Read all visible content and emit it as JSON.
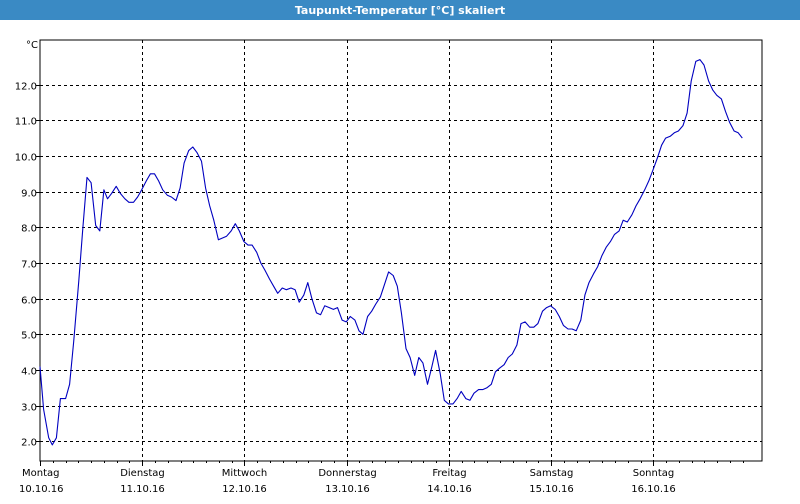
{
  "window": {
    "title": "Taupunkt-Temperatur [°C] skaliert"
  },
  "chart_data": {
    "type": "line",
    "title": "Taupunkt-Temperatur [°C] skaliert",
    "ylabel": "°C",
    "ylim": [
      1.45,
      13.25
    ],
    "xlim": [
      0,
      7.0625
    ],
    "grid": true,
    "yticks": [
      2.0,
      3.0,
      4.0,
      5.0,
      6.0,
      7.0,
      8.0,
      9.0,
      10.0,
      11.0,
      12.0
    ],
    "ytick_labels": [
      "2.0",
      "3.0",
      "4.0",
      "5.0",
      "6.0",
      "7.0",
      "8.0",
      "9.0",
      "10.0",
      "11.0",
      "12.0"
    ],
    "days": [
      {
        "name": "Montag",
        "date": "10.10.16",
        "x": 0
      },
      {
        "name": "Dienstag",
        "date": "11.10.16",
        "x": 1
      },
      {
        "name": "Mittwoch",
        "date": "12.10.16",
        "x": 2
      },
      {
        "name": "Donnerstag",
        "date": "13.10.16",
        "x": 3
      },
      {
        "name": "Freitag",
        "date": "14.10.16",
        "x": 4
      },
      {
        "name": "Samstag",
        "date": "15.10.16",
        "x": 5
      },
      {
        "name": "Sonntag",
        "date": "16.10.16",
        "x": 6
      }
    ],
    "series": [
      {
        "color": "#0000c0",
        "points": [
          [
            0.0,
            4.1
          ],
          [
            0.035,
            2.9
          ],
          [
            0.085,
            2.1
          ],
          [
            0.12,
            1.9
          ],
          [
            0.16,
            2.1
          ],
          [
            0.2,
            3.2
          ],
          [
            0.25,
            3.2
          ],
          [
            0.29,
            3.6
          ],
          [
            0.33,
            4.8
          ],
          [
            0.38,
            6.5
          ],
          [
            0.42,
            8.0
          ],
          [
            0.46,
            9.4
          ],
          [
            0.5,
            9.25
          ],
          [
            0.545,
            8.05
          ],
          [
            0.585,
            7.9
          ],
          [
            0.625,
            9.05
          ],
          [
            0.66,
            8.8
          ],
          [
            0.7,
            8.95
          ],
          [
            0.745,
            9.15
          ],
          [
            0.785,
            8.95
          ],
          [
            0.83,
            8.8
          ],
          [
            0.87,
            8.7
          ],
          [
            0.915,
            8.7
          ],
          [
            0.955,
            8.85
          ],
          [
            0.995,
            9.05
          ],
          [
            1.04,
            9.3
          ],
          [
            1.08,
            9.5
          ],
          [
            1.12,
            9.5
          ],
          [
            1.16,
            9.3
          ],
          [
            1.2,
            9.05
          ],
          [
            1.245,
            8.9
          ],
          [
            1.285,
            8.85
          ],
          [
            1.33,
            8.75
          ],
          [
            1.37,
            9.1
          ],
          [
            1.41,
            9.8
          ],
          [
            1.455,
            10.15
          ],
          [
            1.495,
            10.25
          ],
          [
            1.535,
            10.1
          ],
          [
            1.58,
            9.85
          ],
          [
            1.62,
            9.1
          ],
          [
            1.66,
            8.6
          ],
          [
            1.7,
            8.2
          ],
          [
            1.745,
            7.65
          ],
          [
            1.785,
            7.7
          ],
          [
            1.825,
            7.75
          ],
          [
            1.87,
            7.9
          ],
          [
            1.91,
            8.1
          ],
          [
            1.95,
            7.9
          ],
          [
            1.995,
            7.6
          ],
          [
            2.035,
            7.5
          ],
          [
            2.075,
            7.5
          ],
          [
            2.12,
            7.3
          ],
          [
            2.16,
            7.0
          ],
          [
            2.2,
            6.8
          ],
          [
            2.245,
            6.55
          ],
          [
            2.285,
            6.35
          ],
          [
            2.325,
            6.15
          ],
          [
            2.37,
            6.3
          ],
          [
            2.41,
            6.25
          ],
          [
            2.455,
            6.3
          ],
          [
            2.495,
            6.25
          ],
          [
            2.535,
            5.9
          ],
          [
            2.58,
            6.1
          ],
          [
            2.62,
            6.45
          ],
          [
            2.66,
            6.0
          ],
          [
            2.705,
            5.6
          ],
          [
            2.745,
            5.55
          ],
          [
            2.785,
            5.8
          ],
          [
            2.83,
            5.75
          ],
          [
            2.87,
            5.7
          ],
          [
            2.91,
            5.75
          ],
          [
            2.955,
            5.4
          ],
          [
            2.995,
            5.35
          ],
          [
            3.035,
            5.5
          ],
          [
            3.08,
            5.4
          ],
          [
            3.12,
            5.1
          ],
          [
            3.16,
            5.0
          ],
          [
            3.205,
            5.5
          ],
          [
            3.245,
            5.65
          ],
          [
            3.285,
            5.85
          ],
          [
            3.33,
            6.05
          ],
          [
            3.37,
            6.4
          ],
          [
            3.41,
            6.75
          ],
          [
            3.455,
            6.65
          ],
          [
            3.495,
            6.35
          ],
          [
            3.535,
            5.6
          ],
          [
            3.58,
            4.6
          ],
          [
            3.62,
            4.35
          ],
          [
            3.665,
            3.85
          ],
          [
            3.705,
            4.35
          ],
          [
            3.745,
            4.2
          ],
          [
            3.79,
            3.6
          ],
          [
            3.83,
            4.05
          ],
          [
            3.87,
            4.55
          ],
          [
            3.915,
            3.9
          ],
          [
            3.955,
            3.15
          ],
          [
            3.995,
            3.05
          ],
          [
            4.04,
            3.05
          ],
          [
            4.08,
            3.2
          ],
          [
            4.12,
            3.4
          ],
          [
            4.165,
            3.2
          ],
          [
            4.205,
            3.15
          ],
          [
            4.245,
            3.35
          ],
          [
            4.29,
            3.45
          ],
          [
            4.33,
            3.45
          ],
          [
            4.37,
            3.5
          ],
          [
            4.415,
            3.6
          ],
          [
            4.455,
            3.95
          ],
          [
            4.495,
            4.05
          ],
          [
            4.54,
            4.15
          ],
          [
            4.58,
            4.35
          ],
          [
            4.62,
            4.45
          ],
          [
            4.665,
            4.7
          ],
          [
            4.705,
            5.3
          ],
          [
            4.745,
            5.35
          ],
          [
            4.79,
            5.2
          ],
          [
            4.83,
            5.2
          ],
          [
            4.87,
            5.3
          ],
          [
            4.915,
            5.65
          ],
          [
            4.955,
            5.75
          ],
          [
            4.995,
            5.8
          ],
          [
            5.04,
            5.7
          ],
          [
            5.08,
            5.5
          ],
          [
            5.12,
            5.25
          ],
          [
            5.165,
            5.15
          ],
          [
            5.205,
            5.15
          ],
          [
            5.245,
            5.1
          ],
          [
            5.29,
            5.4
          ],
          [
            5.33,
            6.1
          ],
          [
            5.37,
            6.45
          ],
          [
            5.415,
            6.7
          ],
          [
            5.455,
            6.9
          ],
          [
            5.495,
            7.2
          ],
          [
            5.54,
            7.45
          ],
          [
            5.58,
            7.6
          ],
          [
            5.62,
            7.8
          ],
          [
            5.665,
            7.9
          ],
          [
            5.705,
            8.2
          ],
          [
            5.745,
            8.15
          ],
          [
            5.79,
            8.35
          ],
          [
            5.83,
            8.6
          ],
          [
            5.87,
            8.8
          ],
          [
            5.915,
            9.05
          ],
          [
            5.955,
            9.3
          ],
          [
            5.995,
            9.6
          ],
          [
            6.04,
            9.95
          ],
          [
            6.08,
            10.3
          ],
          [
            6.12,
            10.5
          ],
          [
            6.165,
            10.55
          ],
          [
            6.205,
            10.65
          ],
          [
            6.245,
            10.7
          ],
          [
            6.29,
            10.85
          ],
          [
            6.33,
            11.2
          ],
          [
            6.37,
            12.1
          ],
          [
            6.415,
            12.65
          ],
          [
            6.455,
            12.7
          ],
          [
            6.495,
            12.55
          ],
          [
            6.54,
            12.1
          ],
          [
            6.58,
            11.85
          ],
          [
            6.62,
            11.7
          ],
          [
            6.665,
            11.6
          ],
          [
            6.705,
            11.25
          ],
          [
            6.745,
            10.95
          ],
          [
            6.79,
            10.7
          ],
          [
            6.83,
            10.65
          ],
          [
            6.87,
            10.5
          ]
        ]
      }
    ]
  }
}
